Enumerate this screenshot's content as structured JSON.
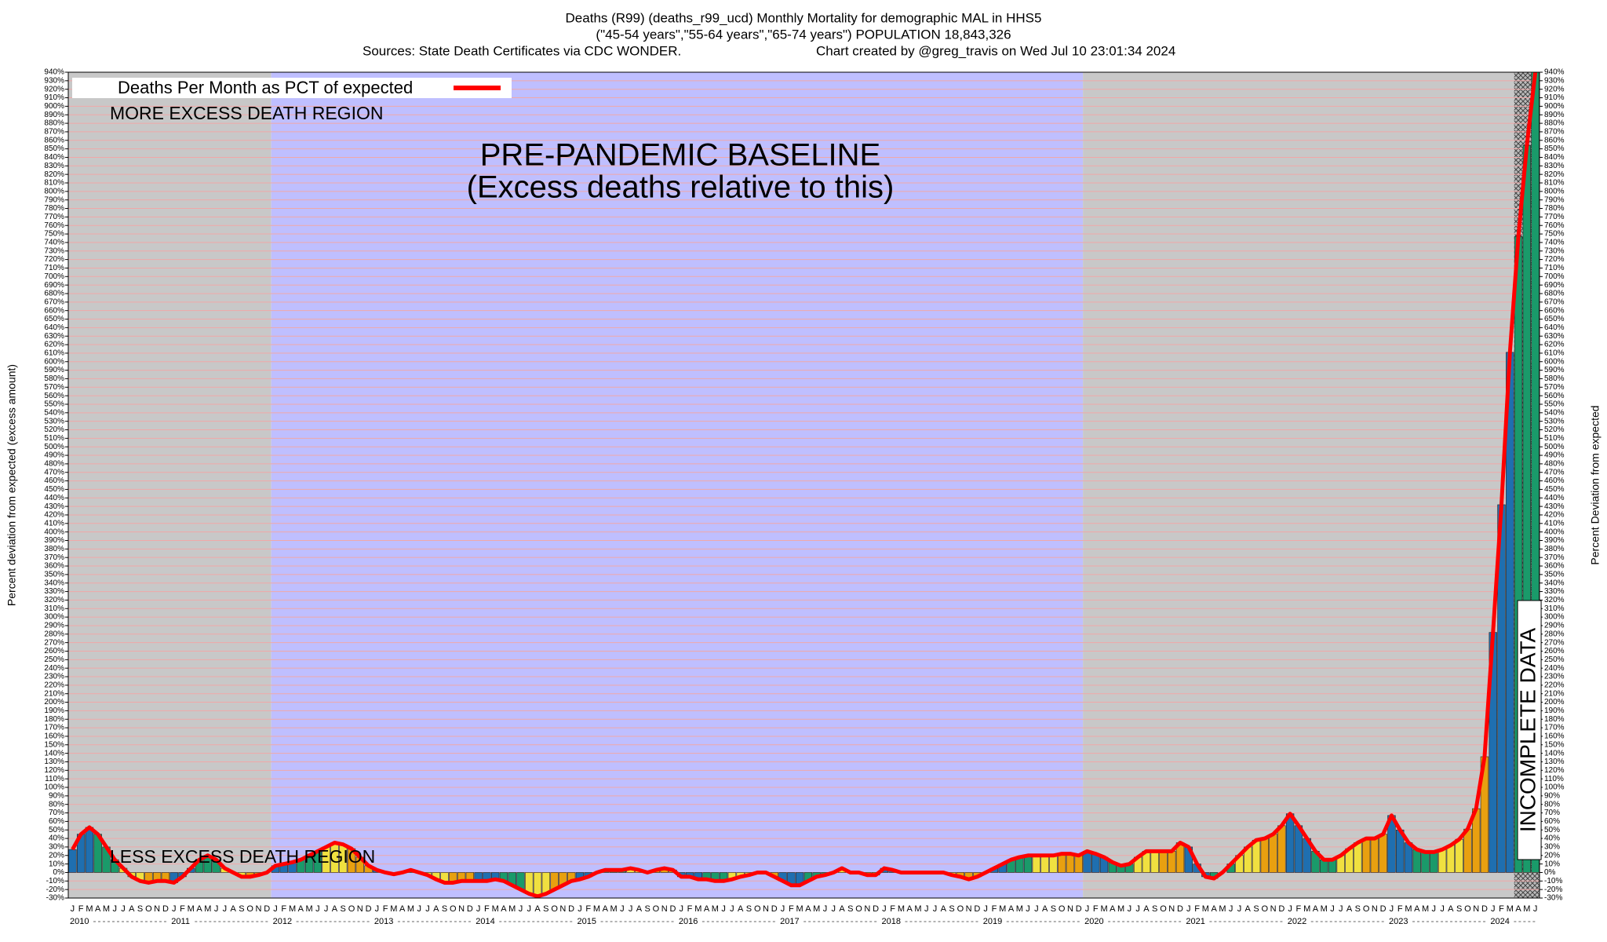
{
  "chart_data": {
    "type": "bar",
    "title_lines": [
      "Deaths (R99) (deaths_r99_ucd) Monthly Mortality for demographic MAL in HHS5",
      "(\"45-54 years\",\"55-64 years\",\"65-74 years\") POPULATION 18,843,326"
    ],
    "sources": "Sources: State Death Certificates via CDC WONDER.",
    "credit": "Chart created by @greg_travis on Wed Jul 10 23:01:34 2024",
    "ylabel": "Percent deviation from expected (excess amount)",
    "y2label": "Percent Deviation from expected",
    "annotations": {
      "more": "MORE EXCESS DEATH REGION",
      "less": "LESS EXCESS DEATH REGION",
      "baseline": "PRE-PANDEMIC BASELINE",
      "baseline_note": "(Excess deaths relative to this)",
      "incomplete": "INCOMPLETE DATA"
    },
    "categories": [
      "J",
      "F",
      "M",
      "A",
      "M",
      "J",
      "J",
      "A",
      "S",
      "O",
      "N",
      "D",
      "J",
      "F",
      "M",
      "A",
      "M",
      "J",
      "J",
      "A",
      "S",
      "O",
      "N",
      "D",
      "J",
      "F",
      "M",
      "A",
      "M",
      "J",
      "J",
      "A",
      "S",
      "O",
      "N",
      "D",
      "J",
      "F",
      "M",
      "A",
      "M",
      "J",
      "J",
      "A",
      "S",
      "O",
      "N",
      "D",
      "J",
      "F",
      "M",
      "A",
      "M",
      "J",
      "J",
      "A",
      "S",
      "O",
      "N",
      "D",
      "J",
      "F",
      "M",
      "A",
      "M",
      "J",
      "J",
      "A",
      "S",
      "O",
      "N",
      "D",
      "J",
      "F",
      "M",
      "A",
      "M",
      "J",
      "J",
      "A",
      "S",
      "O",
      "N",
      "D",
      "J",
      "F",
      "M",
      "A",
      "M",
      "J",
      "J",
      "A",
      "S",
      "O",
      "N",
      "D",
      "J",
      "F",
      "M",
      "A",
      "M",
      "J",
      "J",
      "A",
      "S",
      "O",
      "N",
      "D",
      "J",
      "F",
      "M",
      "A",
      "M",
      "J",
      "J",
      "A",
      "S",
      "O",
      "N",
      "D",
      "J",
      "F",
      "M",
      "A",
      "M",
      "J",
      "J",
      "A",
      "S",
      "O",
      "N",
      "D",
      "J",
      "F",
      "M",
      "A",
      "M",
      "J",
      "J",
      "A",
      "S",
      "O",
      "N",
      "D",
      "J",
      "F",
      "M",
      "A",
      "M",
      "J",
      "J",
      "A",
      "S",
      "O",
      "N",
      "D",
      "J",
      "F",
      "M",
      "A",
      "M",
      "J",
      "J",
      "A",
      "S",
      "O",
      "N",
      "D",
      "J",
      "F",
      "M",
      "A",
      "M",
      "J"
    ],
    "years": [
      "2010",
      "2011",
      "2012",
      "2013",
      "2014",
      "2015",
      "2016",
      "2017",
      "2018",
      "2019",
      "2020",
      "2021",
      "2022",
      "2023",
      "2024"
    ],
    "series": [
      {
        "name": "Deaths Per Month as PCT of expected",
        "color": "#ff0000",
        "values": [
          27,
          45,
          53,
          45,
          30,
          15,
          5,
          -5,
          -10,
          -12,
          -10,
          -10,
          -12,
          -5,
          5,
          15,
          20,
          15,
          5,
          0,
          -5,
          -5,
          -3,
          0,
          8,
          10,
          12,
          15,
          20,
          25,
          30,
          35,
          33,
          28,
          18,
          8,
          3,
          0,
          -2,
          0,
          3,
          0,
          -3,
          -8,
          -12,
          -12,
          -10,
          -10,
          -10,
          -10,
          -8,
          -10,
          -15,
          -20,
          -25,
          -28,
          -25,
          -20,
          -15,
          -10,
          -8,
          -5,
          0,
          3,
          3,
          3,
          5,
          3,
          0,
          3,
          5,
          3,
          -5,
          -5,
          -8,
          -8,
          -10,
          -10,
          -8,
          -5,
          -3,
          0,
          0,
          -5,
          -10,
          -15,
          -15,
          -10,
          -5,
          -3,
          0,
          5,
          0,
          0,
          -3,
          -3,
          5,
          3,
          0,
          0,
          0,
          0,
          0,
          0,
          -3,
          -5,
          -8,
          -5,
          0,
          5,
          10,
          15,
          18,
          20,
          20,
          20,
          20,
          22,
          22,
          20,
          25,
          22,
          18,
          12,
          8,
          10,
          18,
          25,
          25,
          25,
          25,
          35,
          30,
          10,
          -5,
          -7,
          0,
          10,
          20,
          30,
          38,
          40,
          45,
          55,
          69,
          55,
          40,
          25,
          15,
          15,
          20,
          28,
          35,
          40,
          40,
          45,
          67,
          50,
          35,
          27,
          24,
          24,
          27,
          32,
          39,
          51,
          75,
          136,
          282,
          432,
          611,
          747,
          854,
          940
        ]
      }
    ],
    "quarter_colors": [
      "#1f6fb0",
      "#1a9a6a",
      "#f0e040",
      "#e8a010"
    ],
    "shaded_regions": [
      {
        "from": 0,
        "to": 24,
        "color": "#c8c8c8"
      },
      {
        "from": 24,
        "to": 120,
        "color": "#bfbfff"
      },
      {
        "from": 120,
        "to": 171,
        "color": "#c8c8c8"
      }
    ],
    "incomplete_from": 171,
    "ylim": [
      -30,
      940
    ],
    "yticks": [
      {
        "value": -30,
        "label": "-30%"
      },
      {
        "value": -20,
        "label": "-20%"
      },
      {
        "value": -10,
        "label": "-10%"
      },
      {
        "value": 0,
        "label": "0%"
      },
      {
        "value": 10,
        "label": "10%"
      },
      {
        "value": 20,
        "label": "20%"
      },
      {
        "value": 30,
        "label": "30%"
      },
      {
        "value": 40,
        "label": "40%"
      },
      {
        "value": 50,
        "label": "50%"
      },
      {
        "value": 60,
        "label": "60%"
      },
      {
        "value": 70,
        "label": "70%"
      },
      {
        "value": 80,
        "label": "80%"
      },
      {
        "value": 90,
        "label": "90%"
      },
      {
        "value": 100,
        "label": "100%"
      },
      {
        "value": 110,
        "label": "110%"
      },
      {
        "value": 120,
        "label": "120%"
      },
      {
        "value": 130,
        "label": "130%"
      },
      {
        "value": 140,
        "label": "140%"
      },
      {
        "value": 150,
        "label": "150%"
      },
      {
        "value": 160,
        "label": "160%"
      },
      {
        "value": 170,
        "label": "170%"
      },
      {
        "value": 180,
        "label": "180%"
      },
      {
        "value": 190,
        "label": "190%"
      },
      {
        "value": 200,
        "label": "200%"
      },
      {
        "value": 210,
        "label": "210%"
      },
      {
        "value": 220,
        "label": "220%"
      },
      {
        "value": 230,
        "label": "230%"
      },
      {
        "value": 240,
        "label": "240%"
      },
      {
        "value": 250,
        "label": "250%"
      },
      {
        "value": 260,
        "label": "260%"
      },
      {
        "value": 270,
        "label": "270%"
      },
      {
        "value": 280,
        "label": "280%"
      },
      {
        "value": 290,
        "label": "290%"
      },
      {
        "value": 300,
        "label": "300%"
      },
      {
        "value": 310,
        "label": "310%"
      },
      {
        "value": 320,
        "label": "320%"
      },
      {
        "value": 330,
        "label": "330%"
      },
      {
        "value": 340,
        "label": "340%"
      },
      {
        "value": 350,
        "label": "350%"
      },
      {
        "value": 360,
        "label": "360%"
      },
      {
        "value": 370,
        "label": "370%"
      },
      {
        "value": 380,
        "label": "380%"
      },
      {
        "value": 390,
        "label": "390%"
      },
      {
        "value": 400,
        "label": "400%"
      },
      {
        "value": 410,
        "label": "410%"
      },
      {
        "value": 420,
        "label": "420%"
      },
      {
        "value": 430,
        "label": "430%"
      },
      {
        "value": 440,
        "label": "440%"
      },
      {
        "value": 450,
        "label": "450%"
      },
      {
        "value": 460,
        "label": "460%"
      },
      {
        "value": 470,
        "label": "470%"
      },
      {
        "value": 480,
        "label": "480%"
      },
      {
        "value": 490,
        "label": "490%"
      },
      {
        "value": 500,
        "label": "500%"
      },
      {
        "value": 510,
        "label": "510%"
      },
      {
        "value": 520,
        "label": "520%"
      },
      {
        "value": 530,
        "label": "530%"
      },
      {
        "value": 540,
        "label": "540%"
      },
      {
        "value": 550,
        "label": "550%"
      },
      {
        "value": 560,
        "label": "560%"
      },
      {
        "value": 570,
        "label": "570%"
      },
      {
        "value": 580,
        "label": "580%"
      },
      {
        "value": 590,
        "label": "590%"
      },
      {
        "value": 600,
        "label": "600%"
      },
      {
        "value": 610,
        "label": "610%"
      },
      {
        "value": 620,
        "label": "620%"
      },
      {
        "value": 630,
        "label": "630%"
      },
      {
        "value": 640,
        "label": "640%"
      },
      {
        "value": 650,
        "label": "650%"
      },
      {
        "value": 660,
        "label": "660%"
      },
      {
        "value": 670,
        "label": "670%"
      },
      {
        "value": 680,
        "label": "680%"
      },
      {
        "value": 690,
        "label": "690%"
      },
      {
        "value": 700,
        "label": "700%"
      },
      {
        "value": 710,
        "label": "710%"
      },
      {
        "value": 720,
        "label": "720%"
      },
      {
        "value": 730,
        "label": "730%"
      },
      {
        "value": 740,
        "label": "740%"
      },
      {
        "value": 750,
        "label": "750%"
      },
      {
        "value": 760,
        "label": "760%"
      },
      {
        "value": 770,
        "label": "770%"
      },
      {
        "value": 780,
        "label": "780%"
      },
      {
        "value": 790,
        "label": "790%"
      },
      {
        "value": 800,
        "label": "800%"
      },
      {
        "value": 810,
        "label": "810%"
      },
      {
        "value": 820,
        "label": "820%"
      },
      {
        "value": 830,
        "label": "830%"
      },
      {
        "value": 840,
        "label": "840%"
      },
      {
        "value": 850,
        "label": "850%"
      },
      {
        "value": 860,
        "label": "860%"
      },
      {
        "value": 870,
        "label": "870%"
      },
      {
        "value": 880,
        "label": "880%"
      },
      {
        "value": 890,
        "label": "890%"
      },
      {
        "value": 900,
        "label": "900%"
      },
      {
        "value": 910,
        "label": "910%"
      },
      {
        "value": 920,
        "label": "920%"
      },
      {
        "value": 930,
        "label": "930%"
      },
      {
        "value": 940,
        "label": "940%"
      }
    ],
    "grid": true,
    "grid_color": "#f0a8a8"
  }
}
